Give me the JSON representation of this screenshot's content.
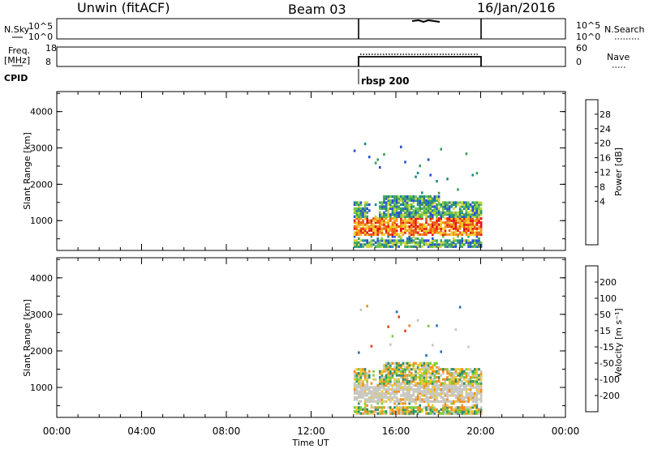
{
  "header": {
    "station": "Unwin (fitACF)",
    "beam": "Beam 03",
    "date": "16/Jan/2016"
  },
  "top_panels": {
    "nsky_label": "N.Sky",
    "nsky_ticks": [
      "10^5",
      "10^0"
    ],
    "nsearch_label": "N.Search",
    "freq_label_1": "Freq.",
    "freq_label_2": "[MHz]",
    "freq_ticks": [
      "18",
      "8"
    ],
    "nave_ticks": [
      "60",
      "0"
    ],
    "nave_label": "Nave",
    "cpid_label": "CPID",
    "cpid_text": "rbsp 200"
  },
  "chart_data": [
    {
      "type": "heatmap",
      "name": "power",
      "ylabel": "Slant Range [km]",
      "yticks": [
        "4000",
        "3000",
        "2000",
        "1000"
      ],
      "ylim": [
        180,
        4550
      ],
      "xlim": [
        0,
        24
      ],
      "colorbar_label": "Power [dB]",
      "colorbar_ticks": [
        "28",
        "24",
        "20",
        "16",
        "12",
        "8",
        "4"
      ],
      "colors": [
        "#0000ff",
        "#2a4fd6",
        "#1f8a8a",
        "#3aa05a",
        "#6cc44a",
        "#c9d63a",
        "#f2cf2a",
        "#f29a1e",
        "#ee5a14",
        "#e61414"
      ],
      "data_span_hours": [
        14.0,
        20.0
      ],
      "main_band_km": [
        300,
        1500
      ],
      "peak_power_db": 30
    },
    {
      "type": "heatmap",
      "name": "velocity",
      "ylabel": "Slant Range [km]",
      "yticks": [
        "4000",
        "3000",
        "2000",
        "1000"
      ],
      "ylim": [
        180,
        4550
      ],
      "xlim": [
        0,
        24
      ],
      "colorbar_label": "Velocity [m s⁻¹]",
      "colorbar_ticks": [
        "200",
        "100",
        "50",
        "15",
        "-15",
        "-50",
        "-100",
        "-200"
      ],
      "colors": [
        "#1030c8",
        "#2a6fb8",
        "#2f8f6a",
        "#7ccc3a",
        "#c8c8c0",
        "#f0c830",
        "#f0901c",
        "#e64018",
        "#e01010"
      ],
      "data_span_hours": [
        14.0,
        20.0
      ],
      "main_band_km": [
        300,
        1500
      ]
    }
  ],
  "x_axis": {
    "ticks": [
      "00:00",
      "04:00",
      "08:00",
      "12:00",
      "16:00",
      "20:00",
      "00:00"
    ],
    "label": "Time UT"
  }
}
